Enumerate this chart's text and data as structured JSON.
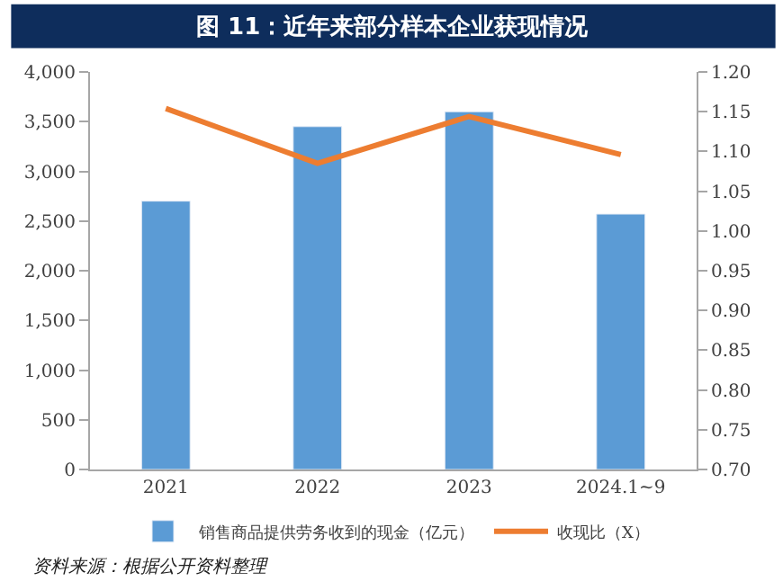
{
  "chart_data": {
    "type": "bar",
    "title": "图 11：近年来部分样本企业获现情况",
    "categories": [
      "2021",
      "2022",
      "2023",
      "2024.1~9"
    ],
    "series": [
      {
        "name": "销售商品提供劳务收到的现金（亿元）",
        "color": "#5b9bd5",
        "values": [
          2700,
          3450,
          3600,
          2570
        ]
      },
      {
        "name": "收现比（X）",
        "type": "line",
        "axis": "y2",
        "color": "#ed7d31",
        "values": [
          1.154,
          1.085,
          1.144,
          1.096
        ]
      }
    ],
    "ylim": [
      0,
      4000
    ],
    "yticks": [
      0,
      {
        "value": 500,
        "label": "500"
      },
      {
        "value": 1000,
        "label": "1,000"
      },
      {
        "value": 1500,
        "label": "1,500"
      },
      {
        "value": 2000,
        "label": "2,000"
      },
      {
        "value": 2500,
        "label": "2,500"
      },
      {
        "value": 3000,
        "label": "3,000"
      },
      {
        "value": 3500,
        "label": "3,500"
      },
      {
        "value": 4000,
        "label": "4,000"
      }
    ],
    "y2lim": [
      0.7,
      1.2
    ],
    "y2ticks": [
      {
        "value": 0.7,
        "label": "0.70"
      },
      {
        "value": 0.75,
        "label": "0.75"
      },
      {
        "value": 0.8,
        "label": "0.80"
      },
      {
        "value": 0.85,
        "label": "0.85"
      },
      {
        "value": 0.9,
        "label": "0.90"
      },
      {
        "value": 0.95,
        "label": "0.95"
      },
      {
        "value": 1.0,
        "label": "1.00"
      },
      {
        "value": 1.05,
        "label": "1.05"
      },
      {
        "value": 1.1,
        "label": "1.10"
      },
      {
        "value": 1.15,
        "label": "1.15"
      },
      {
        "value": 1.2,
        "label": "1.20"
      }
    ],
    "legend": "bottom",
    "marker": "none",
    "line_style": "solid",
    "annotations": [
      "资料来源：根据公开资料整理"
    ]
  }
}
